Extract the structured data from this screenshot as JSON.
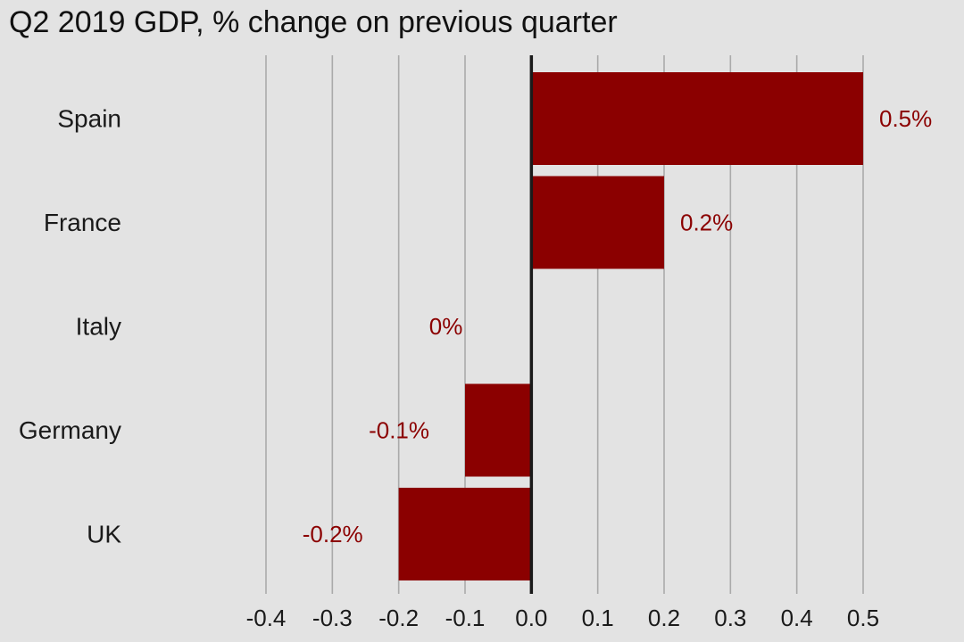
{
  "chart_data": {
    "type": "bar",
    "orientation": "horizontal",
    "title": "Q2 2019 GDP, % change on previous quarter",
    "xlabel": "",
    "ylabel": "",
    "categories": [
      "Spain",
      "France",
      "Italy",
      "Germany",
      "UK"
    ],
    "values": [
      0.5,
      0.2,
      0,
      -0.1,
      -0.2
    ],
    "value_labels": [
      "0.5%",
      "0.2%",
      "0%",
      "-0.1%",
      "-0.2%"
    ],
    "xlim": [
      -0.4,
      0.5
    ],
    "xticks": [
      -0.4,
      -0.3,
      -0.2,
      -0.1,
      0.0,
      0.1,
      0.2,
      0.3,
      0.4,
      0.5
    ],
    "xtick_labels": [
      "-0.4",
      "-0.3",
      "-0.2",
      "-0.1",
      "0.0",
      "0.1",
      "0.2",
      "0.3",
      "0.4",
      "0.5"
    ],
    "grid": "vertical",
    "legend": "none"
  },
  "colors": {
    "background": "#e3e3e3",
    "bar": "#8b0000",
    "gridline": "#aaaaaa",
    "zero_line": "#1a1a1a",
    "value_label": "#8b0000"
  }
}
